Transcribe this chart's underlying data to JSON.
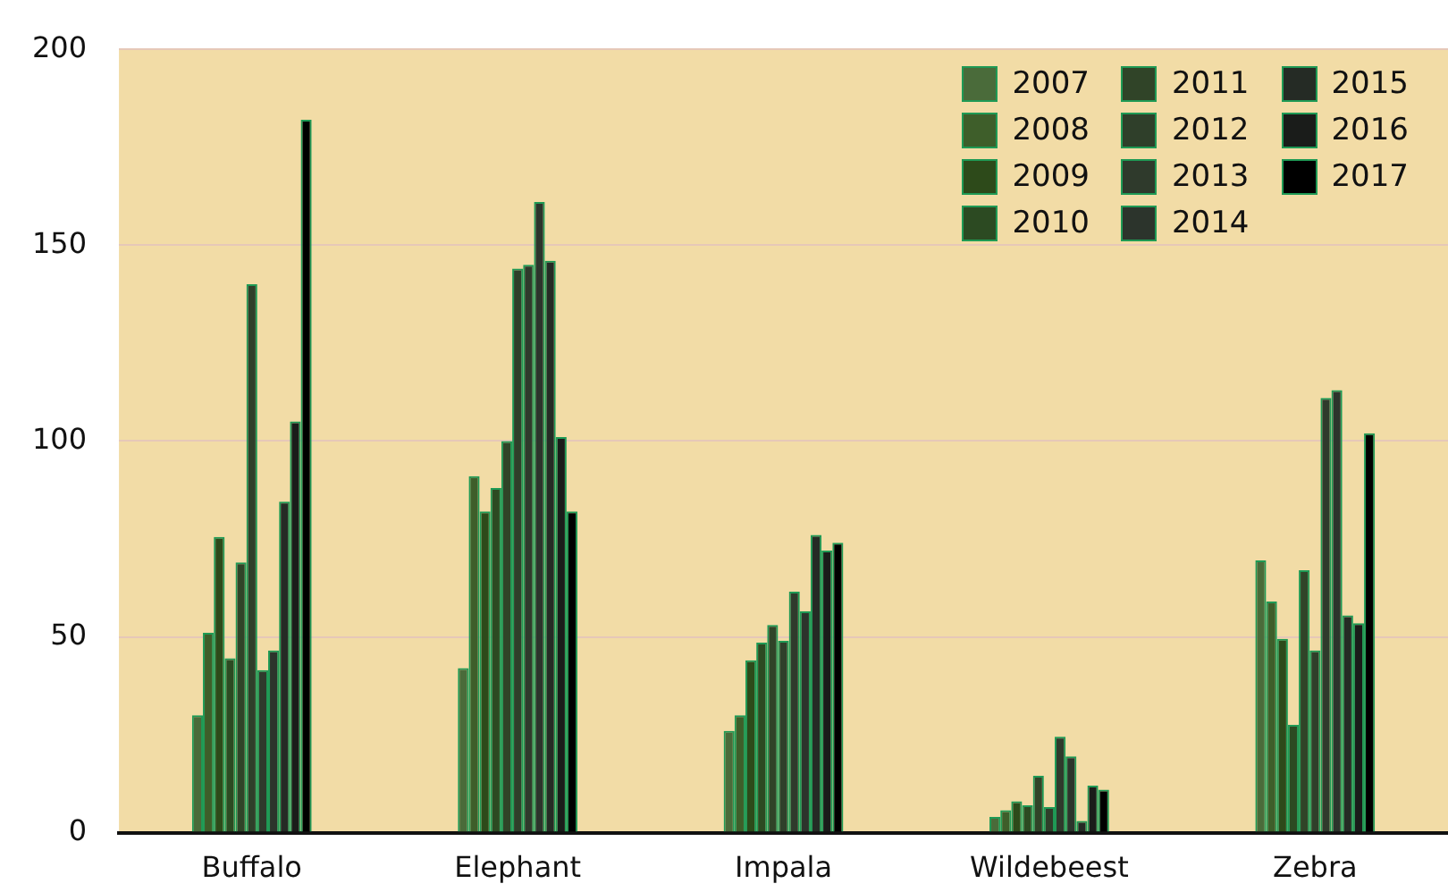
{
  "chart_data": {
    "type": "bar",
    "categories": [
      "Buffalo",
      "Elephant",
      "Impala",
      "Wildebeest",
      "Zebra"
    ],
    "series": [
      {
        "name": "2007",
        "color": "#4a6b3a",
        "values": [
          30,
          42,
          26,
          4,
          69.5
        ]
      },
      {
        "name": "2008",
        "color": "#3e5e2a",
        "values": [
          51,
          91,
          30,
          5.7,
          59
        ]
      },
      {
        "name": "2009",
        "color": "#2d4a1a",
        "values": [
          75.5,
          82,
          44,
          8,
          49.5
        ]
      },
      {
        "name": "2010",
        "color": "#2c4a22",
        "values": [
          44.5,
          88,
          48.5,
          7,
          27.5
        ]
      },
      {
        "name": "2011",
        "color": "#304428",
        "values": [
          69,
          100,
          53,
          14.5,
          67
        ]
      },
      {
        "name": "2012",
        "color": "#2f3f2a",
        "values": [
          140,
          144,
          49,
          6.5,
          46.5
        ]
      },
      {
        "name": "2013",
        "color": "#2f3a2c",
        "values": [
          41.5,
          145,
          61.5,
          24.5,
          111
        ]
      },
      {
        "name": "2014",
        "color": "#2c342c",
        "values": [
          46.5,
          161,
          56.5,
          19.5,
          113
        ]
      },
      {
        "name": "2015",
        "color": "#252b25",
        "values": [
          84.5,
          146,
          76,
          3,
          55.5
        ]
      },
      {
        "name": "2016",
        "color": "#1a1c1a",
        "values": [
          105,
          101,
          72,
          12,
          53.5
        ]
      },
      {
        "name": "2017",
        "color": "#000000",
        "values": [
          182,
          82,
          74,
          11,
          102
        ]
      }
    ],
    "ylim": [
      0,
      200
    ],
    "yticks": [
      0,
      50,
      100,
      150,
      200
    ],
    "grid": "y",
    "legend": "top right"
  }
}
